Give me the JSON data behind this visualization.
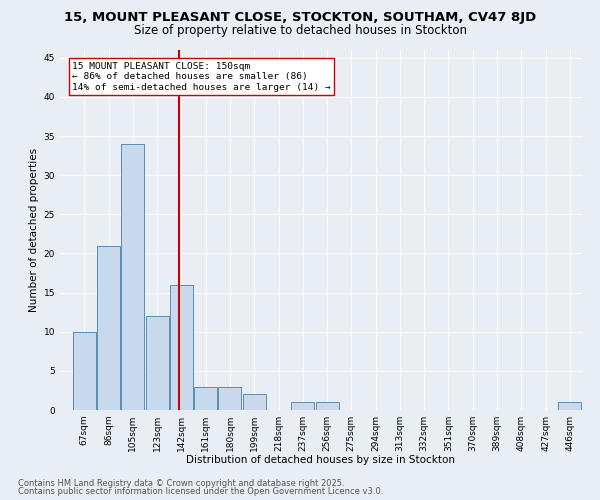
{
  "title_line1": "15, MOUNT PLEASANT CLOSE, STOCKTON, SOUTHAM, CV47 8JD",
  "title_line2": "Size of property relative to detached houses in Stockton",
  "xlabel": "Distribution of detached houses by size in Stockton",
  "ylabel": "Number of detached properties",
  "bins": [
    67,
    86,
    105,
    123,
    142,
    161,
    180,
    199,
    218,
    237,
    256,
    275,
    294,
    313,
    332,
    351,
    370,
    389,
    408,
    427,
    446
  ],
  "counts": [
    10,
    21,
    34,
    12,
    16,
    3,
    3,
    2,
    0,
    1,
    1,
    0,
    0,
    0,
    0,
    0,
    0,
    0,
    0,
    0,
    1
  ],
  "bar_color": "#c9d9ed",
  "bar_edge_color": "#5b8db8",
  "property_size": 150,
  "vline_color": "#cc0000",
  "annotation_text": "15 MOUNT PLEASANT CLOSE: 150sqm\n← 86% of detached houses are smaller (86)\n14% of semi-detached houses are larger (14) →",
  "annotation_box_color": "#ffffff",
  "annotation_box_edge": "#cc0000",
  "ylim": [
    0,
    46
  ],
  "yticks": [
    0,
    5,
    10,
    15,
    20,
    25,
    30,
    35,
    40,
    45
  ],
  "background_color": "#e8eef4",
  "grid_color": "#ffffff",
  "footer_line1": "Contains HM Land Registry data © Crown copyright and database right 2025.",
  "footer_line2": "Contains public sector information licensed under the Open Government Licence v3.0.",
  "title_fontsize": 9.5,
  "subtitle_fontsize": 8.5,
  "axis_label_fontsize": 7.5,
  "tick_fontsize": 6.5,
  "annotation_fontsize": 6.8,
  "footer_fontsize": 6.0
}
